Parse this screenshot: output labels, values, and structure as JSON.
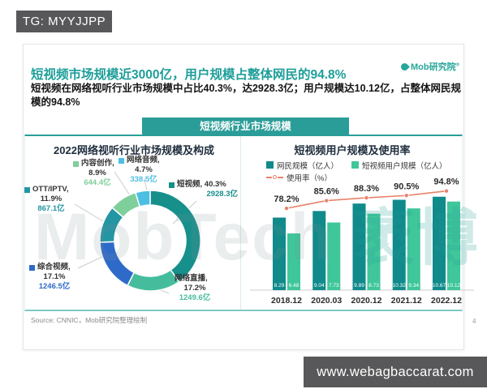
{
  "badge": {
    "text": "TG: MYYJJPP"
  },
  "site_bar": {
    "text": "www.webagbaccarat.com"
  },
  "slide": {
    "logo_text": "Mob研究院",
    "logo_mark": "®",
    "title": "短视频市场规模近3000亿，用户规模占整体网民的94.8%",
    "subtitle": "短视频在网络视听行业市场规模中占比40.3%，达2928.3亿；用户规模达10.12亿，占整体网民规模的94.8%",
    "banner": "短视频行业市场规模",
    "watermark_left": "MobTech ",
    "watermark_right": "袤博",
    "source": "Source: CNNIC，Mob研究院整理绘制",
    "page_number": "4"
  },
  "chart_data": [
    {
      "type": "pie",
      "subtype": "donut",
      "title": "2022网络视听行业市场规模及构成",
      "unit": "亿元",
      "segments": [
        {
          "label": "短视频",
          "percent": 40.3,
          "percent_label": "40.3%",
          "value_label": "2928.3亿",
          "color": "#178f8b"
        },
        {
          "label": "网络直播",
          "percent": 17.2,
          "percent_label": "17.2%",
          "value_label": "1249.6亿",
          "color": "#45bd9d"
        },
        {
          "label": "综合视频",
          "percent": 17.1,
          "percent_label": "17.1%",
          "value_label": "1246.5亿",
          "color": "#2e6bc8"
        },
        {
          "label": "OTT/IPTV",
          "percent": 11.9,
          "percent_label": "11.9%",
          "value_label": "867.1亿",
          "color": "#2495a3"
        },
        {
          "label": "内容创作",
          "percent": 8.9,
          "percent_label": "8.9%",
          "value_label": "644.4亿",
          "color": "#7fcf9b"
        },
        {
          "label": "网络音频",
          "percent": 4.7,
          "percent_label": "4.7%",
          "value_label": "338.5亿",
          "color": "#4cbfe3"
        }
      ]
    },
    {
      "type": "bar",
      "subtype": "grouped-bar-with-line",
      "title": "短视频用户规模及使用率",
      "categories": [
        "2018.12",
        "2020.03",
        "2020.12",
        "2021.12",
        "2022.12"
      ],
      "series": [
        {
          "name": "网民规模（亿人）",
          "values": [
            8.29,
            9.04,
            9.89,
            10.32,
            10.67
          ],
          "color": "#108a8a"
        },
        {
          "name": "短视频用户规模（亿人）",
          "values": [
            6.48,
            7.73,
            8.73,
            9.34,
            10.12
          ],
          "color": "#3fc69b"
        }
      ],
      "line": {
        "name": "使用率（%）",
        "values": [
          78.2,
          85.6,
          88.3,
          90.5,
          94.8
        ],
        "labels": [
          "78.2%",
          "85.6%",
          "88.3%",
          "90.5%",
          "94.8%"
        ],
        "color": "#e8826a"
      },
      "legend_position": "top",
      "grid": false
    }
  ]
}
